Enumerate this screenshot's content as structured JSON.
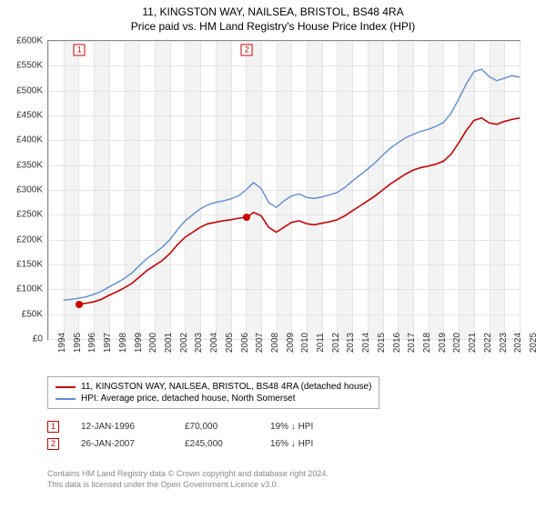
{
  "title": "11, KINGSTON WAY, NAILSEA, BRISTOL, BS48 4RA",
  "subtitle": "Price paid vs. HM Land Registry's House Price Index (HPI)",
  "chart": {
    "type": "line",
    "background_color": "#ffffff",
    "shade_color": "#f3f3f3",
    "grid_color": "#e5e5e5",
    "border_color": "#888888",
    "y": {
      "min": 0,
      "max": 600000,
      "step": 50000,
      "prefix": "£",
      "suffix": "K",
      "divisor": 1000
    },
    "x": {
      "min": 1994,
      "max": 2025,
      "step": 1
    },
    "label_fontsize": 10,
    "series": [
      {
        "name": "11, KINGSTON WAY, NAILSEA, BRISTOL, BS48 4RA (detached house)",
        "color": "#cc0000",
        "width": 1.6,
        "points": [
          [
            1996.04,
            70000
          ],
          [
            1996.5,
            72000
          ],
          [
            1997,
            75000
          ],
          [
            1997.5,
            80000
          ],
          [
            1998,
            88000
          ],
          [
            1998.5,
            95000
          ],
          [
            1999,
            103000
          ],
          [
            1999.5,
            112000
          ],
          [
            2000,
            125000
          ],
          [
            2000.5,
            138000
          ],
          [
            2001,
            148000
          ],
          [
            2001.5,
            158000
          ],
          [
            2002,
            172000
          ],
          [
            2002.5,
            190000
          ],
          [
            2003,
            205000
          ],
          [
            2003.5,
            215000
          ],
          [
            2004,
            225000
          ],
          [
            2004.5,
            232000
          ],
          [
            2005,
            235000
          ],
          [
            2005.5,
            238000
          ],
          [
            2006,
            240000
          ],
          [
            2006.5,
            243000
          ],
          [
            2007.07,
            245000
          ],
          [
            2007.5,
            255000
          ],
          [
            2008,
            248000
          ],
          [
            2008.5,
            225000
          ],
          [
            2009,
            215000
          ],
          [
            2009.5,
            225000
          ],
          [
            2010,
            235000
          ],
          [
            2010.5,
            238000
          ],
          [
            2011,
            232000
          ],
          [
            2011.5,
            230000
          ],
          [
            2012,
            233000
          ],
          [
            2012.5,
            236000
          ],
          [
            2013,
            240000
          ],
          [
            2013.5,
            248000
          ],
          [
            2014,
            258000
          ],
          [
            2014.5,
            268000
          ],
          [
            2015,
            278000
          ],
          [
            2015.5,
            288000
          ],
          [
            2016,
            300000
          ],
          [
            2016.5,
            312000
          ],
          [
            2017,
            322000
          ],
          [
            2017.5,
            332000
          ],
          [
            2018,
            340000
          ],
          [
            2018.5,
            345000
          ],
          [
            2019,
            348000
          ],
          [
            2019.5,
            352000
          ],
          [
            2020,
            358000
          ],
          [
            2020.5,
            372000
          ],
          [
            2021,
            395000
          ],
          [
            2021.5,
            420000
          ],
          [
            2022,
            440000
          ],
          [
            2022.5,
            445000
          ],
          [
            2023,
            435000
          ],
          [
            2023.5,
            432000
          ],
          [
            2024,
            438000
          ],
          [
            2024.5,
            442000
          ],
          [
            2025,
            445000
          ]
        ]
      },
      {
        "name": "HPI: Average price, detached house, North Somerset",
        "color": "#5b8dd6",
        "width": 1.4,
        "points": [
          [
            1995,
            78000
          ],
          [
            1995.5,
            80000
          ],
          [
            1996,
            82000
          ],
          [
            1996.5,
            85000
          ],
          [
            1997,
            90000
          ],
          [
            1997.5,
            96000
          ],
          [
            1998,
            105000
          ],
          [
            1998.5,
            113000
          ],
          [
            1999,
            122000
          ],
          [
            1999.5,
            133000
          ],
          [
            2000,
            148000
          ],
          [
            2000.5,
            162000
          ],
          [
            2001,
            173000
          ],
          [
            2001.5,
            185000
          ],
          [
            2002,
            200000
          ],
          [
            2002.5,
            220000
          ],
          [
            2003,
            238000
          ],
          [
            2003.5,
            250000
          ],
          [
            2004,
            262000
          ],
          [
            2004.5,
            270000
          ],
          [
            2005,
            275000
          ],
          [
            2005.5,
            278000
          ],
          [
            2006,
            282000
          ],
          [
            2006.5,
            288000
          ],
          [
            2007,
            300000
          ],
          [
            2007.5,
            315000
          ],
          [
            2008,
            303000
          ],
          [
            2008.5,
            275000
          ],
          [
            2009,
            265000
          ],
          [
            2009.5,
            278000
          ],
          [
            2010,
            288000
          ],
          [
            2010.5,
            292000
          ],
          [
            2011,
            285000
          ],
          [
            2011.5,
            283000
          ],
          [
            2012,
            286000
          ],
          [
            2012.5,
            290000
          ],
          [
            2013,
            295000
          ],
          [
            2013.5,
            305000
          ],
          [
            2014,
            318000
          ],
          [
            2014.5,
            330000
          ],
          [
            2015,
            342000
          ],
          [
            2015.5,
            355000
          ],
          [
            2016,
            370000
          ],
          [
            2016.5,
            384000
          ],
          [
            2017,
            395000
          ],
          [
            2017.5,
            405000
          ],
          [
            2018,
            412000
          ],
          [
            2018.5,
            418000
          ],
          [
            2019,
            422000
          ],
          [
            2019.5,
            428000
          ],
          [
            2020,
            436000
          ],
          [
            2020.5,
            455000
          ],
          [
            2021,
            483000
          ],
          [
            2021.5,
            514000
          ],
          [
            2022,
            538000
          ],
          [
            2022.5,
            543000
          ],
          [
            2023,
            528000
          ],
          [
            2023.5,
            520000
          ],
          [
            2024,
            525000
          ],
          [
            2024.5,
            530000
          ],
          [
            2025,
            527000
          ]
        ]
      }
    ],
    "transactions": [
      {
        "n": "1",
        "year": 1996.04,
        "price": 70000,
        "date": "12-JAN-1996",
        "price_label": "£70,000",
        "pct": "19% ↓ HPI"
      },
      {
        "n": "2",
        "year": 2007.07,
        "price": 245000,
        "date": "26-JAN-2007",
        "price_label": "£245,000",
        "pct": "16% ↓ HPI"
      }
    ]
  },
  "legend_label_0": "11, KINGSTON WAY, NAILSEA, BRISTOL, BS48 4RA (detached house)",
  "legend_label_1": "HPI: Average price, detached house, North Somerset",
  "footer_line1": "Contains HM Land Registry data © Crown copyright and database right 2024.",
  "footer_line2": "This data is licensed under the Open Government Licence v3.0."
}
